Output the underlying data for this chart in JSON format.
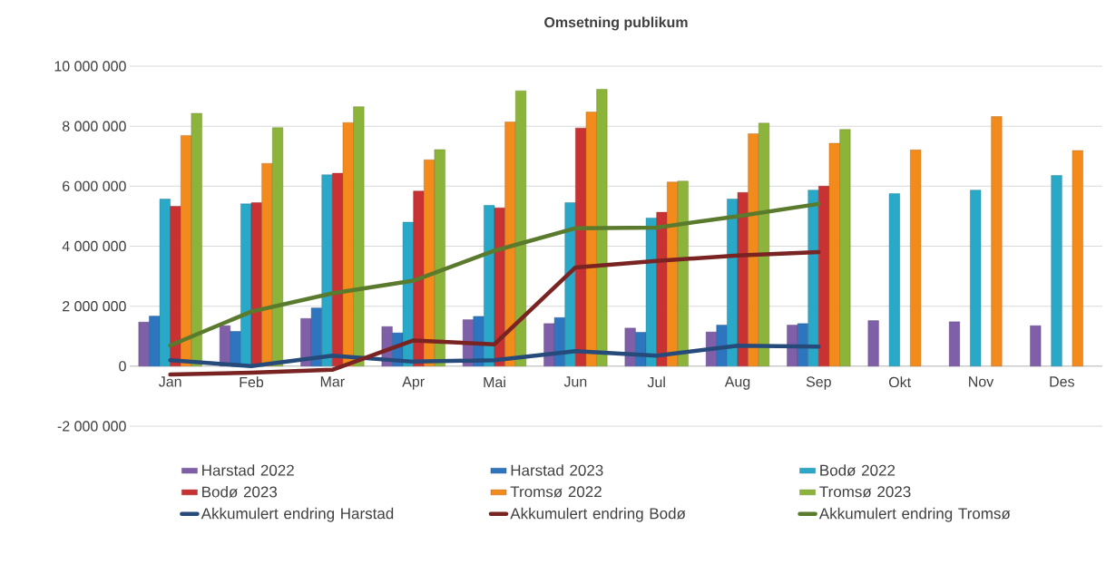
{
  "chart_data": {
    "type": "bar",
    "title": "Omsetning publikum",
    "categories": [
      "Jan",
      "Feb",
      "Mar",
      "Apr",
      "Mai",
      "Jun",
      "Jul",
      "Aug",
      "Sep",
      "Okt",
      "Nov",
      "Des"
    ],
    "series": [
      {
        "name": "Harstad 2022",
        "color": "#7f5fa8",
        "values": [
          1470000,
          1350000,
          1590000,
          1320000,
          1550000,
          1420000,
          1270000,
          1140000,
          1370000,
          1520000,
          1480000,
          1350000
        ]
      },
      {
        "name": "Harstad 2023",
        "color": "#2e75c0",
        "values": [
          1670000,
          1160000,
          1940000,
          1110000,
          1660000,
          1620000,
          1130000,
          1370000,
          1420000,
          null,
          null,
          null
        ]
      },
      {
        "name": "Bodø 2022",
        "color": "#2aa8c8",
        "values": [
          5570000,
          5410000,
          6380000,
          4800000,
          5360000,
          5450000,
          4940000,
          5570000,
          5870000,
          5750000,
          5870000,
          6360000
        ]
      },
      {
        "name": "Bodø 2023",
        "color": "#c83232",
        "values": [
          5330000,
          5450000,
          6430000,
          5840000,
          5280000,
          7940000,
          5130000,
          5790000,
          6000000,
          null,
          null,
          null
        ]
      },
      {
        "name": "Tromsø 2022",
        "color": "#f28a1c",
        "values": [
          7690000,
          6760000,
          8120000,
          6880000,
          8140000,
          8470000,
          6140000,
          7750000,
          7430000,
          7210000,
          8320000,
          7190000
        ]
      },
      {
        "name": "Tromsø 2023",
        "color": "#8cb33a",
        "values": [
          8430000,
          7950000,
          8650000,
          7220000,
          9180000,
          9230000,
          6170000,
          8100000,
          7890000,
          null,
          null,
          null
        ]
      },
      {
        "name": "Akkumulert endring Harstad",
        "type": "line",
        "color": "#264b7a",
        "values": [
          200000,
          0,
          350000,
          150000,
          200000,
          500000,
          350000,
          680000,
          650000,
          null,
          null,
          null
        ]
      },
      {
        "name": "Akkumulert endring Bodø",
        "type": "line",
        "color": "#7a2323",
        "values": [
          -280000,
          -220000,
          -120000,
          860000,
          730000,
          3290000,
          3510000,
          3690000,
          3800000,
          null,
          null,
          null
        ]
      },
      {
        "name": "Akkumulert endring Tromsø",
        "type": "line",
        "color": "#5a7a2d",
        "values": [
          690000,
          1820000,
          2430000,
          2850000,
          3850000,
          4600000,
          4620000,
          5000000,
          5410000,
          null,
          null,
          null
        ]
      }
    ],
    "ylim": [
      -2000000,
      10000000
    ],
    "yticks": [
      {
        "value": -2000000,
        "label": "-2 000 000"
      },
      {
        "value": 0,
        "label": "0"
      },
      {
        "value": 2000000,
        "label": "2 000 000"
      },
      {
        "value": 4000000,
        "label": "4 000 000"
      },
      {
        "value": 6000000,
        "label": "6 000 000"
      },
      {
        "value": 8000000,
        "label": "8 000 000"
      },
      {
        "value": 10000000,
        "label": "10 000 000"
      }
    ],
    "grid": "y",
    "legend": "bottom"
  }
}
